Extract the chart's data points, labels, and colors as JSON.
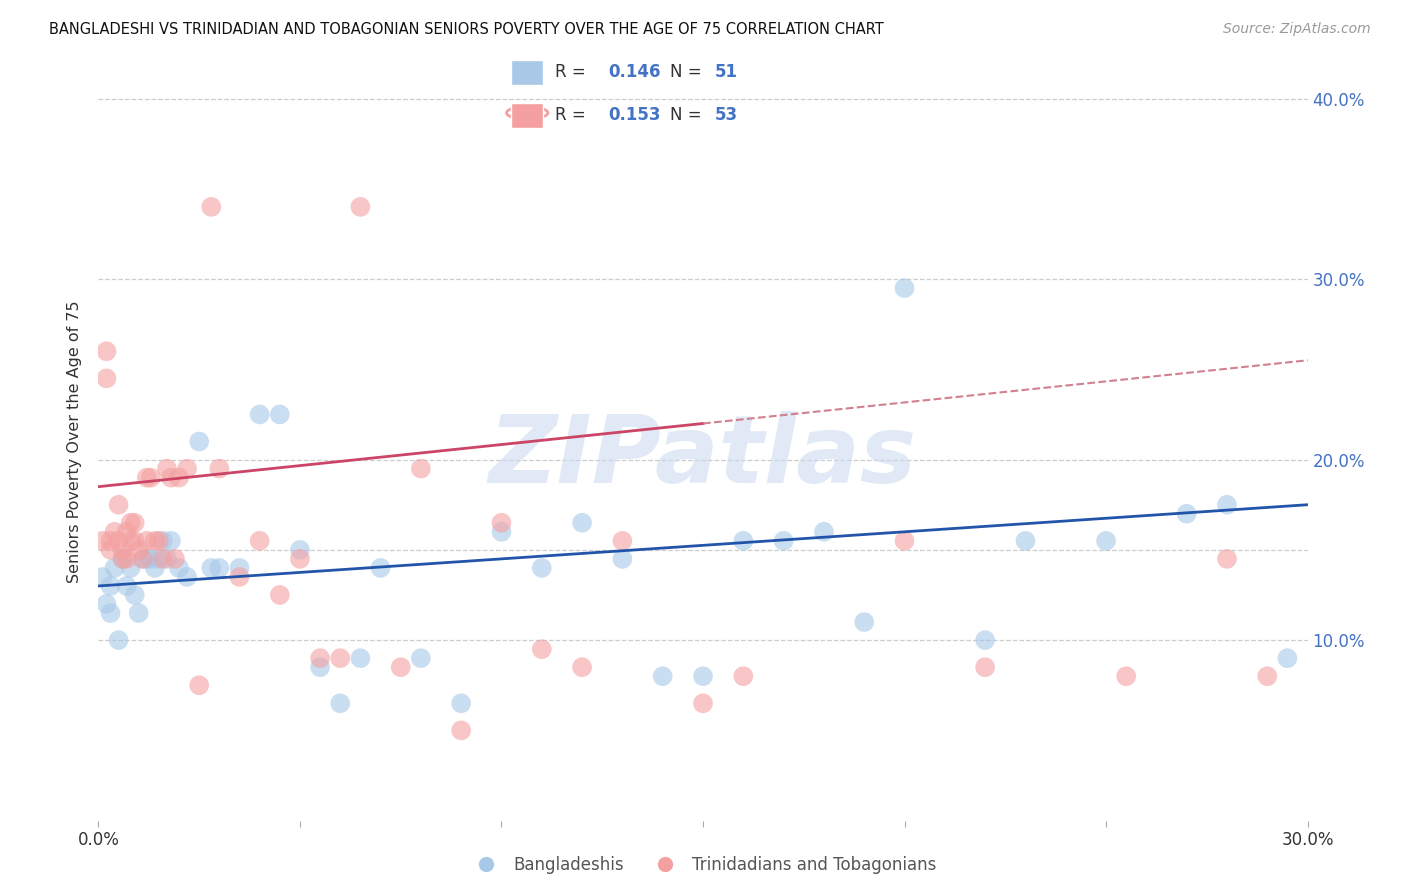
{
  "title": "BANGLADESHI VS TRINIDADIAN AND TOBAGONIAN SENIORS POVERTY OVER THE AGE OF 75 CORRELATION CHART",
  "source": "Source: ZipAtlas.com",
  "ylabel": "Seniors Poverty Over the Age of 75",
  "xlim": [
    0.0,
    0.3
  ],
  "ylim": [
    0.0,
    0.42
  ],
  "ytick_positions": [
    0.1,
    0.2,
    0.3,
    0.4
  ],
  "ytick_labels": [
    "10.0%",
    "20.0%",
    "30.0%",
    "40.0%"
  ],
  "xtick_positions": [
    0.0,
    0.05,
    0.1,
    0.15,
    0.2,
    0.25,
    0.3
  ],
  "xtick_labels": [
    "0.0%",
    "",
    "",
    "",
    "",
    "",
    "30.0%"
  ],
  "grid_color": "#cccccc",
  "background_color": "#ffffff",
  "watermark": "ZIPatlas",
  "blue_color": "#a8c8e8",
  "pink_color": "#f4a0a0",
  "blue_line_color": "#2255aa",
  "pink_line_color": "#cc4466",
  "pink_line_dashed_color": "#d08090",
  "legend_R1": "0.146",
  "legend_N1": "51",
  "legend_R2": "0.153",
  "legend_N2": "53",
  "blue_line_start_y": 0.13,
  "blue_line_end_y": 0.175,
  "pink_line_start_y": 0.185,
  "pink_line_end_y": 0.255,
  "blue_points_x": [
    0.001,
    0.002,
    0.003,
    0.003,
    0.004,
    0.005,
    0.006,
    0.007,
    0.008,
    0.009,
    0.01,
    0.011,
    0.012,
    0.013,
    0.014,
    0.015,
    0.016,
    0.017,
    0.018,
    0.02,
    0.022,
    0.025,
    0.028,
    0.03,
    0.035,
    0.04,
    0.045,
    0.05,
    0.055,
    0.06,
    0.065,
    0.07,
    0.08,
    0.09,
    0.1,
    0.11,
    0.12,
    0.13,
    0.14,
    0.15,
    0.16,
    0.17,
    0.18,
    0.19,
    0.2,
    0.22,
    0.23,
    0.25,
    0.27,
    0.28,
    0.295
  ],
  "blue_points_y": [
    0.135,
    0.12,
    0.13,
    0.115,
    0.14,
    0.1,
    0.145,
    0.13,
    0.14,
    0.125,
    0.115,
    0.145,
    0.145,
    0.145,
    0.14,
    0.145,
    0.155,
    0.145,
    0.155,
    0.14,
    0.135,
    0.21,
    0.14,
    0.14,
    0.14,
    0.225,
    0.225,
    0.15,
    0.085,
    0.065,
    0.09,
    0.14,
    0.09,
    0.065,
    0.16,
    0.14,
    0.165,
    0.145,
    0.08,
    0.08,
    0.155,
    0.155,
    0.16,
    0.11,
    0.295,
    0.1,
    0.155,
    0.155,
    0.17,
    0.175,
    0.09
  ],
  "pink_points_x": [
    0.001,
    0.002,
    0.002,
    0.003,
    0.003,
    0.004,
    0.005,
    0.005,
    0.006,
    0.006,
    0.007,
    0.007,
    0.008,
    0.008,
    0.009,
    0.009,
    0.01,
    0.011,
    0.012,
    0.012,
    0.013,
    0.014,
    0.015,
    0.016,
    0.017,
    0.018,
    0.019,
    0.02,
    0.022,
    0.025,
    0.028,
    0.03,
    0.035,
    0.04,
    0.045,
    0.05,
    0.055,
    0.06,
    0.065,
    0.075,
    0.08,
    0.09,
    0.1,
    0.11,
    0.12,
    0.13,
    0.15,
    0.16,
    0.2,
    0.22,
    0.255,
    0.28,
    0.29
  ],
  "pink_points_y": [
    0.155,
    0.26,
    0.245,
    0.155,
    0.15,
    0.16,
    0.175,
    0.155,
    0.145,
    0.15,
    0.16,
    0.145,
    0.155,
    0.165,
    0.155,
    0.165,
    0.15,
    0.145,
    0.155,
    0.19,
    0.19,
    0.155,
    0.155,
    0.145,
    0.195,
    0.19,
    0.145,
    0.19,
    0.195,
    0.075,
    0.34,
    0.195,
    0.135,
    0.155,
    0.125,
    0.145,
    0.09,
    0.09,
    0.34,
    0.085,
    0.195,
    0.05,
    0.165,
    0.095,
    0.085,
    0.155,
    0.065,
    0.08,
    0.155,
    0.085,
    0.08,
    0.145,
    0.08
  ]
}
